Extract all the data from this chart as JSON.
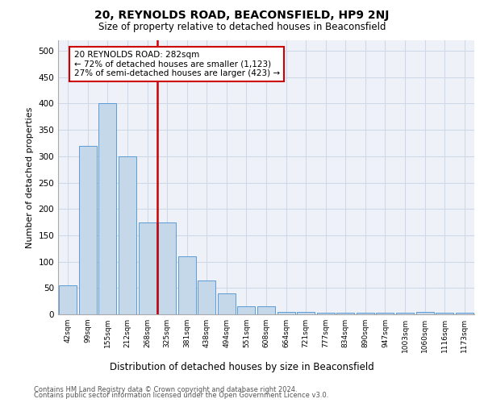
{
  "title_line1": "20, REYNOLDS ROAD, BEACONSFIELD, HP9 2NJ",
  "title_line2": "Size of property relative to detached houses in Beaconsfield",
  "xlabel": "Distribution of detached houses by size in Beaconsfield",
  "ylabel": "Number of detached properties",
  "footer_line1": "Contains HM Land Registry data © Crown copyright and database right 2024.",
  "footer_line2": "Contains public sector information licensed under the Open Government Licence v3.0.",
  "annotation_line1": "20 REYNOLDS ROAD: 282sqm",
  "annotation_line2": "← 72% of detached houses are smaller (1,123)",
  "annotation_line3": "27% of semi-detached houses are larger (423) →",
  "bar_color": "#c5d8ea",
  "bar_edge_color": "#5b9bd5",
  "highlight_color": "#cc0000",
  "grid_color": "#d0d8e8",
  "bg_color": "#eef2f8",
  "categories": [
    "42sqm",
    "99sqm",
    "155sqm",
    "212sqm",
    "268sqm",
    "325sqm",
    "381sqm",
    "438sqm",
    "494sqm",
    "551sqm",
    "608sqm",
    "664sqm",
    "721sqm",
    "777sqm",
    "834sqm",
    "890sqm",
    "947sqm",
    "1003sqm",
    "1060sqm",
    "1116sqm",
    "1173sqm"
  ],
  "values": [
    55,
    320,
    400,
    300,
    175,
    175,
    110,
    65,
    40,
    15,
    15,
    5,
    5,
    3,
    3,
    3,
    3,
    3,
    5,
    3,
    3
  ],
  "red_line_x": 5,
  "ylim": [
    0,
    520
  ],
  "yticks": [
    0,
    50,
    100,
    150,
    200,
    250,
    300,
    350,
    400,
    450,
    500
  ]
}
